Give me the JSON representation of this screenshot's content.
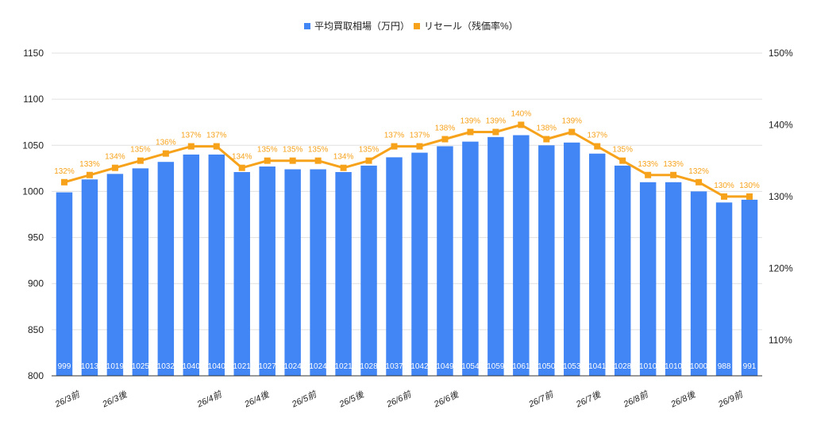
{
  "chart_data": {
    "type": "bar",
    "colors": {
      "bar": "#4285F4",
      "line": "#F7A21B",
      "grid": "#E0E0E0",
      "text": "#222222"
    },
    "legend": {
      "position": "top-center",
      "entries": [
        "平均買取相場（万円）",
        "リセール（残価率%）"
      ]
    },
    "grid": true,
    "x_tick_labels": [
      "26/3前",
      "26/3後",
      "",
      "26/4前",
      "26/4後",
      "26/5前",
      "26/5後",
      "26/6前",
      "26/6後",
      "",
      "26/7前",
      "26/7後",
      "26/8前",
      "26/8後",
      "26/9前"
    ],
    "y_left": {
      "range": [
        800,
        1150
      ],
      "ticks": [
        "800",
        "850",
        "900",
        "950",
        "1000",
        "1050",
        "1100",
        "1150"
      ]
    },
    "y_right": {
      "range": [
        105,
        150
      ],
      "ticks": [
        "110%",
        "120%",
        "130%",
        "140%",
        "150%"
      ]
    },
    "series": [
      {
        "name": "平均買取相場（万円）",
        "type": "bar",
        "axis": "left",
        "values": [
          999,
          1013,
          1019,
          1025,
          1032,
          1040,
          1040,
          1021,
          1027,
          1024,
          1024,
          1021,
          1028,
          1037,
          1042,
          1049,
          1054,
          1059,
          1061,
          1050,
          1053,
          1041,
          1028,
          1010,
          1010,
          1000,
          988,
          991
        ]
      },
      {
        "name": "リセール（残価率%）",
        "type": "line",
        "axis": "right",
        "values": [
          132,
          133,
          134,
          135,
          136,
          137,
          137,
          134,
          135,
          135,
          135,
          134,
          135,
          137,
          137,
          138,
          139,
          139,
          140,
          138,
          139,
          137,
          135,
          133,
          133,
          132,
          130,
          130
        ],
        "labels": [
          "132%",
          "133%",
          "134%",
          "135%",
          "136%",
          "137%",
          "137%",
          "134%",
          "135%",
          "135%",
          "135%",
          "134%",
          "135%",
          "137%",
          "137%",
          "138%",
          "139%",
          "139%",
          "140%",
          "138%",
          "139%",
          "137%",
          "135%",
          "133%",
          "133%",
          "132%",
          "130%",
          "130%"
        ]
      }
    ]
  }
}
